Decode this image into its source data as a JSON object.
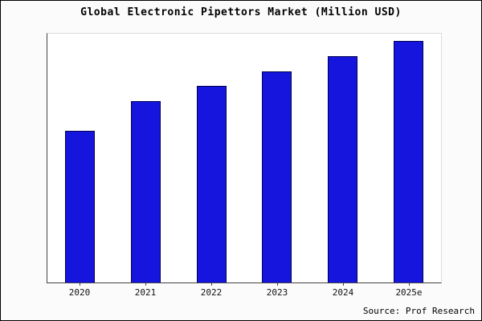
{
  "chart_data": {
    "type": "bar",
    "title": "Global Electronic Pipettors Market (Million USD)",
    "categories": [
      "2020",
      "2021",
      "2022",
      "2023",
      "2024",
      "2025e"
    ],
    "values": [
      61,
      73,
      79,
      85,
      91,
      97
    ],
    "ylim": [
      0,
      100
    ],
    "xlabel": "",
    "ylabel": "",
    "grid": false,
    "legend_position": "none",
    "bar_color": "#1515dd",
    "bar_border_color": "#000050",
    "source": "Source: Prof Research"
  }
}
